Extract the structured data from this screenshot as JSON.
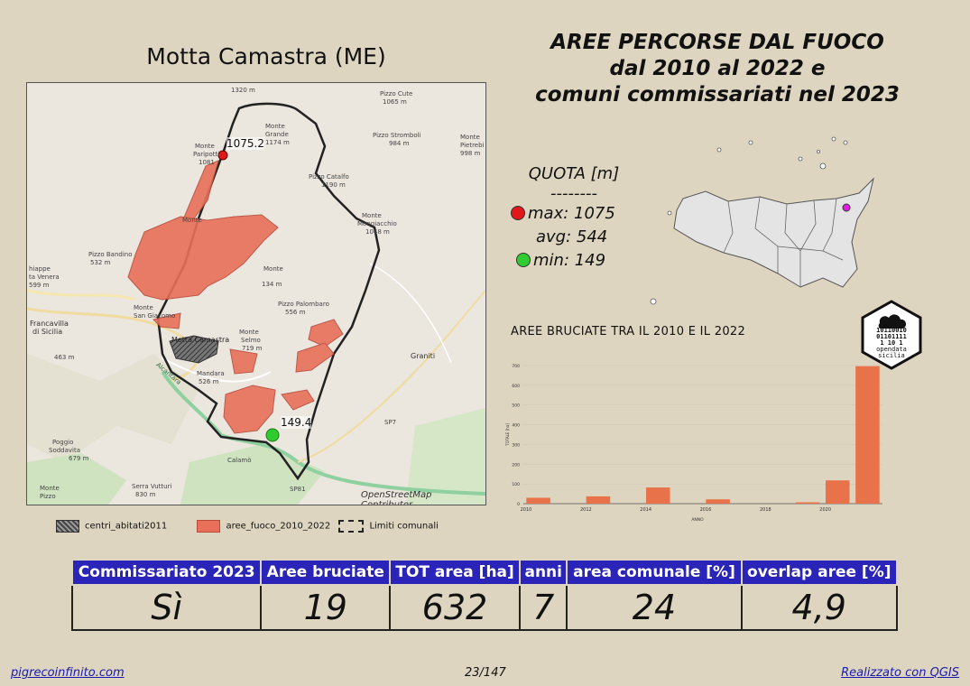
{
  "place_title": "Motta Camastra (ME)",
  "main_title": [
    "AREE PERCORSE DAL FUOCO",
    "dal 2010 al 2022 e",
    "comuni commissariati nel 2023"
  ],
  "map": {
    "max_label": "1075.2",
    "min_label": "149.4",
    "attribution": "OpenStreetMap Contributor",
    "labels": [
      "1320 m",
      "Pizzo Cute",
      "1065 m",
      "Monte",
      "Grande",
      "1174 m",
      "Pizzo Stromboli",
      "984 m",
      "Monte",
      "Pietrebi",
      "998 m",
      "Monte",
      "Paripotti",
      "1081",
      "Pizzo Catalfo",
      "1190 m",
      "Monte",
      "Monte",
      "Mongiacchio",
      "1048 m",
      "Pizzo Bandino",
      "532 m",
      "hiappe",
      "ta Venera",
      "599 m",
      "Monte",
      "134 m",
      "Pizzo Palombaro",
      "556 m",
      "Francavilla",
      "di Sicilia",
      "Monte",
      "San Giacomo",
      "Motta Camastra",
      "Monte",
      "Selmo",
      "719 m",
      "Mandara",
      "526 m",
      "463 m",
      "Graniti",
      "Alcantara",
      "SP7",
      "Poggio",
      "Soddavita",
      "679 m",
      "Serra Vutturi",
      "830 m",
      "Monte",
      "Pizzo",
      "SP81",
      "Calamò"
    ]
  },
  "quota": {
    "title": "QUOTA [m]",
    "sep": "--------",
    "max": "max: 1075",
    "avg": "avg: 544",
    "min": "min: 149",
    "colors": {
      "max": "#e01818",
      "min": "#2ecc2e"
    }
  },
  "chart_title": "AREE BRUCIATE TRA IL 2010 E IL 2022",
  "chart_data": {
    "type": "bar",
    "x": [
      2010,
      2011,
      2012,
      2013,
      2014,
      2015,
      2016,
      2017,
      2018,
      2019,
      2020,
      2021
    ],
    "values": [
      30,
      0,
      37,
      0,
      82,
      0,
      22,
      0,
      0,
      7,
      118,
      697
    ],
    "xticks": [
      "2010",
      "2012",
      "2014",
      "2016",
      "2018",
      "2020"
    ],
    "yticks": [
      "0",
      "100",
      "200",
      "300",
      "400",
      "500",
      "600",
      "700"
    ],
    "ylim": [
      0,
      700
    ],
    "xlabel": "ANNO",
    "ylabel": "TOTALE [ha]",
    "bar_color": "#e8734a"
  },
  "logo_text": [
    "10110010",
    "01101111",
    "1  10  1",
    "opendata",
    "sicilia"
  ],
  "legend": [
    {
      "label": "centri_abitati2011"
    },
    {
      "label": "aree_fuoco_2010_2022"
    },
    {
      "label": "Limiti comunali"
    }
  ],
  "table": {
    "headers": [
      "Commissariato 2023",
      "Aree bruciate",
      "TOT area [ha]",
      "anni",
      "area comunale [%]",
      "overlap aree [%]"
    ],
    "values": [
      "Sì",
      "19",
      "632",
      "7",
      "24",
      "4,9"
    ]
  },
  "footer": {
    "left": "pigrecoinfinito.com",
    "center": "23/147",
    "right": "Realizzato con QGIS"
  }
}
